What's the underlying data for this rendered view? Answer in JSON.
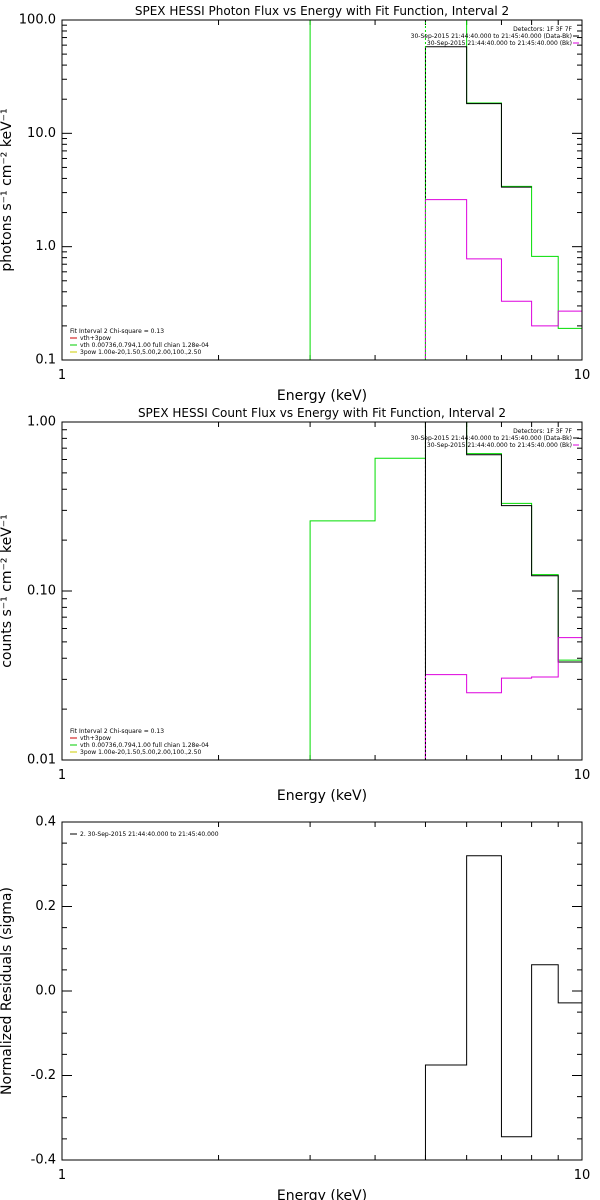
{
  "charts": [
    {
      "title": "SPEX HESSI Photon Flux vs Energy with Fit Function, Interval 2",
      "xlabel": "Energy (keV)",
      "ylabel": "photons s⁻¹ cm⁻² keV⁻¹",
      "xscale": "log",
      "yscale": "log",
      "xlim": [
        1,
        10
      ],
      "ylim": [
        0.1,
        100
      ],
      "x_ticks": [
        {
          "value": 1,
          "label": "1"
        },
        {
          "value": 10,
          "label": "10"
        }
      ],
      "y_ticks": [
        {
          "value": 0.1,
          "label": "0.1"
        },
        {
          "value": 1,
          "label": "1.0"
        },
        {
          "value": 10,
          "label": "10.0"
        },
        {
          "value": 100,
          "label": "100.0"
        }
      ],
      "info_lines": [
        "Detectors: 1F 3F 7F",
        "30-Sep-2015 21:44:40.000 to 21:45:40.000 (Data-Bk)",
        "30-Sep-2015 21:44:40.000 to 21:45:40.000 (Bk)"
      ],
      "legend_lines": [
        {
          "text": "Fit Interval 2   Chi-square = 0.13",
          "color": ""
        },
        {
          "text": "vth+3pow",
          "color": "#cc0000"
        },
        {
          "text": "vth 0.00736,0.794,1.00  full chian 1.28e-04",
          "color": "#00cc00"
        },
        {
          "text": "3pow 1.00e-20,1.50,5.00,2.00,100.,2.50",
          "color": "#cccc00"
        }
      ],
      "series": [
        {
          "color": "#00dd00",
          "points": [
            {
              "x": 3.0,
              "y": 0.1
            },
            {
              "x": 3.0,
              "y": 100
            }
          ]
        },
        {
          "color": "#00dd00",
          "points": [
            {
              "x": 5.0,
              "y": 100
            },
            {
              "x": 6.0,
              "y": 100
            },
            {
              "x": 6.0,
              "y": 18.5
            },
            {
              "x": 7.0,
              "y": 18.5
            },
            {
              "x": 7.0,
              "y": 3.4
            },
            {
              "x": 8.0,
              "y": 3.4
            },
            {
              "x": 8.0,
              "y": 0.82
            },
            {
              "x": 9.0,
              "y": 0.82
            },
            {
              "x": 9.0,
              "y": 0.19
            },
            {
              "x": 10.0,
              "y": 0.19
            }
          ]
        },
        {
          "color": "#000000",
          "points": [
            {
              "x": 5.0,
              "y": 0.1
            },
            {
              "x": 5.0,
              "y": 58
            },
            {
              "x": 6.0,
              "y": 58
            },
            {
              "x": 6.0,
              "y": 18.3
            },
            {
              "x": 7.0,
              "y": 18.3
            },
            {
              "x": 7.0,
              "y": 3.35
            },
            {
              "x": 8.0,
              "y": 3.35
            }
          ]
        },
        {
          "color": "#dd00dd",
          "points": [
            {
              "x": 5.0,
              "y": 0.1
            },
            {
              "x": 5.0,
              "y": 2.6
            },
            {
              "x": 6.0,
              "y": 2.6
            },
            {
              "x": 6.0,
              "y": 0.78
            },
            {
              "x": 7.0,
              "y": 0.78
            },
            {
              "x": 7.0,
              "y": 0.33
            },
            {
              "x": 8.0,
              "y": 0.33
            },
            {
              "x": 8.0,
              "y": 0.2
            },
            {
              "x": 9.0,
              "y": 0.2
            },
            {
              "x": 9.0,
              "y": 0.27
            },
            {
              "x": 10.0,
              "y": 0.27
            }
          ]
        },
        {
          "color": "#00dd00",
          "style": "dotted",
          "points": [
            {
              "x": 5.0,
              "y": 0.1
            },
            {
              "x": 5.0,
              "y": 100
            }
          ]
        }
      ]
    },
    {
      "title": "SPEX HESSI Count Flux vs Energy with Fit Function, Interval 2",
      "xlabel": "Energy (keV)",
      "ylabel": "counts s⁻¹ cm⁻² keV⁻¹",
      "xscale": "log",
      "yscale": "log",
      "xlim": [
        1,
        10
      ],
      "ylim": [
        0.01,
        1
      ],
      "x_ticks": [
        {
          "value": 1,
          "label": "1"
        },
        {
          "value": 10,
          "label": "10"
        }
      ],
      "y_ticks": [
        {
          "value": 0.01,
          "label": "0.01"
        },
        {
          "value": 0.1,
          "label": "0.10"
        },
        {
          "value": 1,
          "label": "1.00"
        }
      ],
      "info_lines": [
        "Detectors: 1F 3F 7F",
        "30-Sep-2015 21:44:40.000 to 21:45:40.000 (Data-Bk)",
        "30-Sep-2015 21:44:40.000 to 21:45:40.000 (Bk)"
      ],
      "legend_lines": [
        {
          "text": "Fit Interval 2   Chi-square = 0.13",
          "color": ""
        },
        {
          "text": "vth+3pow",
          "color": "#cc0000"
        },
        {
          "text": "vth 0.00736,0.794,1.00  full chian 1.28e-04",
          "color": "#00cc00"
        },
        {
          "text": "3pow 1.00e-20,1.50,5.00,2.00,100.,2.50",
          "color": "#cccc00"
        }
      ],
      "series": [
        {
          "color": "#00dd00",
          "points": [
            {
              "x": 3.0,
              "y": 0.01
            },
            {
              "x": 3.0,
              "y": 0.26
            },
            {
              "x": 4.0,
              "y": 0.26
            },
            {
              "x": 4.0,
              "y": 0.61
            },
            {
              "x": 5.0,
              "y": 0.61
            },
            {
              "x": 5.0,
              "y": 1.0
            },
            {
              "x": 6.0,
              "y": 1.0
            },
            {
              "x": 6.0,
              "y": 0.65
            },
            {
              "x": 7.0,
              "y": 0.65
            },
            {
              "x": 7.0,
              "y": 0.33
            },
            {
              "x": 8.0,
              "y": 0.33
            },
            {
              "x": 8.0,
              "y": 0.125
            },
            {
              "x": 9.0,
              "y": 0.125
            },
            {
              "x": 9.0,
              "y": 0.039
            },
            {
              "x": 10.0,
              "y": 0.039
            }
          ]
        },
        {
          "color": "#000000",
          "points": [
            {
              "x": 5.0,
              "y": 0.01
            },
            {
              "x": 5.0,
              "y": 1.0
            },
            {
              "x": 6.0,
              "y": 1.0
            },
            {
              "x": 6.0,
              "y": 0.64
            },
            {
              "x": 7.0,
              "y": 0.64
            },
            {
              "x": 7.0,
              "y": 0.32
            },
            {
              "x": 8.0,
              "y": 0.32
            },
            {
              "x": 8.0,
              "y": 0.123
            },
            {
              "x": 9.0,
              "y": 0.123
            },
            {
              "x": 9.0,
              "y": 0.038
            },
            {
              "x": 10.0,
              "y": 0.038
            }
          ]
        },
        {
          "color": "#dd00dd",
          "points": [
            {
              "x": 5.0,
              "y": 0.01
            },
            {
              "x": 5.0,
              "y": 0.032
            },
            {
              "x": 6.0,
              "y": 0.032
            },
            {
              "x": 6.0,
              "y": 0.025
            },
            {
              "x": 7.0,
              "y": 0.025
            },
            {
              "x": 7.0,
              "y": 0.0305
            },
            {
              "x": 8.0,
              "y": 0.0305
            },
            {
              "x": 8.0,
              "y": 0.031
            },
            {
              "x": 9.0,
              "y": 0.031
            },
            {
              "x": 9.0,
              "y": 0.053
            },
            {
              "x": 10.0,
              "y": 0.053
            }
          ]
        },
        {
          "color": "#000000",
          "style": "dotted",
          "points": [
            {
              "x": 5.0,
              "y": 0.01
            },
            {
              "x": 5.0,
              "y": 1.0
            }
          ]
        }
      ]
    },
    {
      "title": "",
      "xlabel": "Energy (keV)",
      "ylabel": "Normalized Residuals (sigma)",
      "xscale": "log",
      "yscale": "linear",
      "xlim": [
        1,
        10
      ],
      "ylim": [
        -0.4,
        0.4
      ],
      "x_ticks": [
        {
          "value": 1,
          "label": "1"
        },
        {
          "value": 10,
          "label": "10"
        }
      ],
      "y_ticks": [
        {
          "value": -0.4,
          "label": "-0.4"
        },
        {
          "value": -0.2,
          "label": "-0.2"
        },
        {
          "value": 0.0,
          "label": "0.0"
        },
        {
          "value": 0.2,
          "label": "0.2"
        },
        {
          "value": 0.4,
          "label": "0.4"
        }
      ],
      "info_lines": [],
      "legend_lines": [
        {
          "text": "2. 30-Sep-2015 21:44:40.000 to 21:45:40.000",
          "color": "#000000"
        }
      ],
      "series": [
        {
          "color": "#000000",
          "points": [
            {
              "x": 5.0,
              "y": -0.4
            },
            {
              "x": 5.0,
              "y": -0.175
            },
            {
              "x": 6.0,
              "y": -0.175
            },
            {
              "x": 6.0,
              "y": 0.32
            },
            {
              "x": 7.0,
              "y": 0.32
            },
            {
              "x": 7.0,
              "y": -0.345
            },
            {
              "x": 8.0,
              "y": -0.345
            },
            {
              "x": 8.0,
              "y": 0.062
            },
            {
              "x": 9.0,
              "y": 0.062
            },
            {
              "x": 9.0,
              "y": -0.028
            },
            {
              "x": 10.0,
              "y": -0.028
            }
          ]
        }
      ]
    }
  ]
}
